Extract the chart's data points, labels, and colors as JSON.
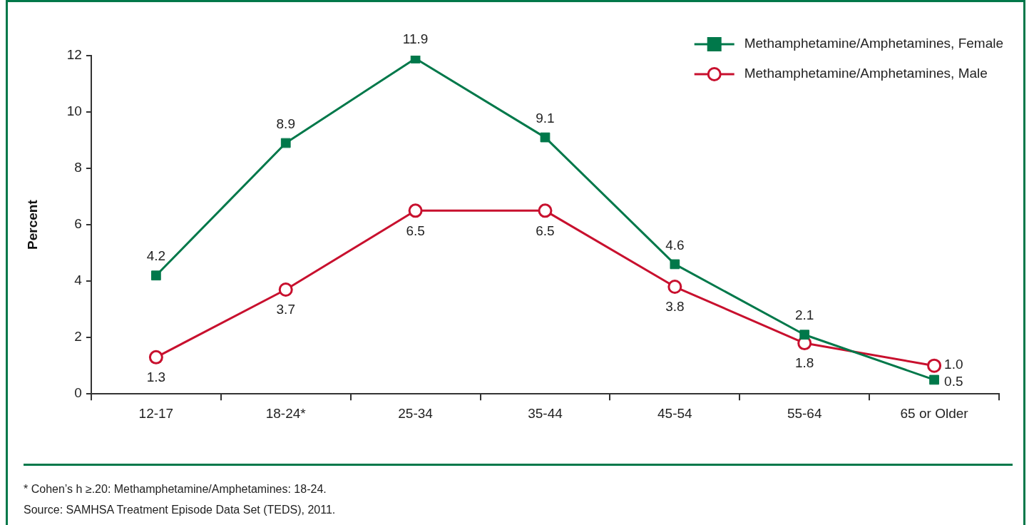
{
  "chart_data": {
    "type": "line",
    "ylabel": "Percent",
    "categories": [
      "12-17",
      "18-24*",
      "25-34",
      "35-44",
      "45-54",
      "55-64",
      "65 or Older"
    ],
    "series": [
      {
        "name": "Methamphetamine/Amphetamines, Female",
        "color": "#00784a",
        "marker": "square",
        "values": [
          4.2,
          8.9,
          11.9,
          9.1,
          4.6,
          2.1,
          0.5
        ],
        "value_labels": [
          "4.2",
          "8.9",
          "11.9",
          "9.1",
          "4.6",
          "2.1",
          "0.5"
        ]
      },
      {
        "name": "Methamphetamine/Amphetamines, Male",
        "color": "#c8102e",
        "marker": "circle",
        "values": [
          1.3,
          3.7,
          6.5,
          6.5,
          3.8,
          1.8,
          1.0
        ],
        "value_labels": [
          "1.3",
          "3.7",
          "6.5",
          "6.5",
          "3.8",
          "1.8",
          "1.0"
        ]
      }
    ],
    "ylim": [
      0,
      12
    ],
    "yticks": [
      0,
      2,
      4,
      6,
      8,
      10,
      12
    ],
    "grid": false,
    "legend": "top right",
    "line_style": "solid",
    "annotations": [
      "* Cohen’s h ≥.20: Methamphetamine/Amphetamines: 18-24.",
      "Source: SAMHSA Treatment Episode Data Set (TEDS), 2011."
    ]
  }
}
